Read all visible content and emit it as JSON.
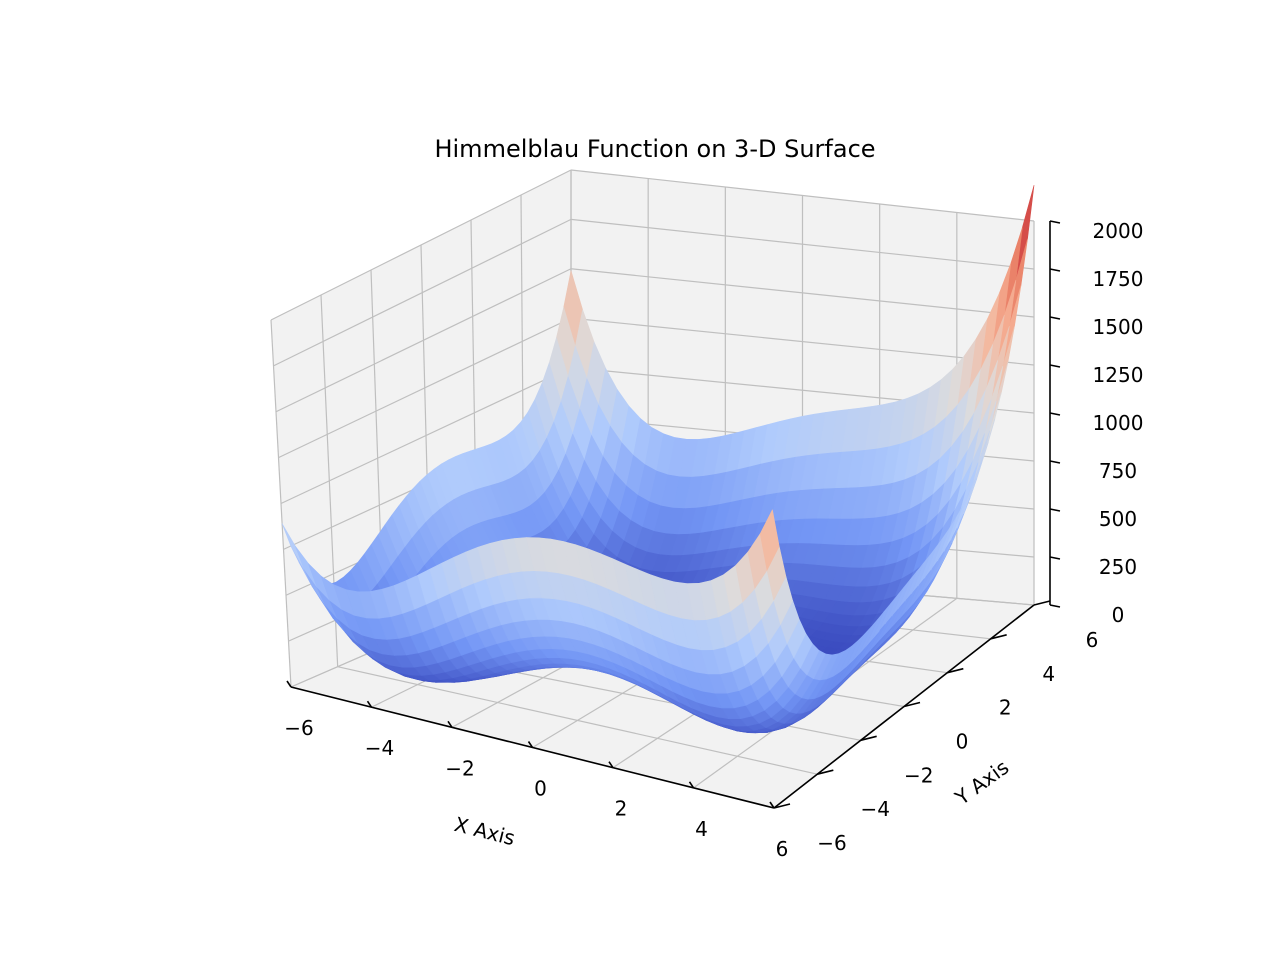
{
  "chart_data": {
    "type": "surface",
    "title": "Himmelblau Function on 3-D Surface",
    "function": "(x^2 + y - 11)^2 + (x + y^2 - 7)^2",
    "xlabel": "X Axis",
    "ylabel": "Y Axis",
    "zlabel": "",
    "xlim": [
      -6,
      6
    ],
    "ylim": [
      -6,
      6
    ],
    "zlim": [
      0,
      2000
    ],
    "x_ticks": [
      -6,
      -4,
      -2,
      0,
      2,
      4,
      6
    ],
    "y_ticks": [
      -6,
      -4,
      -2,
      0,
      2,
      4,
      6
    ],
    "z_ticks": [
      0,
      250,
      500,
      750,
      1000,
      1250,
      1500,
      1750,
      2000
    ],
    "x_tick_labels": [
      "−6",
      "−4",
      "−2",
      "0",
      "2",
      "4",
      "6"
    ],
    "y_tick_labels": [
      "−6",
      "−4",
      "−2",
      "0",
      "2",
      "4",
      "6"
    ],
    "z_tick_labels": [
      "0",
      "250",
      "500",
      "750",
      "1000",
      "1250",
      "1500",
      "1750",
      "2000"
    ],
    "colormap": "coolwarm",
    "colormap_stops": [
      "#3b4cc0",
      "#7396f5",
      "#b0cbfc",
      "#dddcdc",
      "#f6b599",
      "#e7745b",
      "#b40426"
    ],
    "grid": true,
    "pane_color": "#f2f2f2",
    "grid_color": "#bfbfbf",
    "axis_color": "#000000"
  }
}
